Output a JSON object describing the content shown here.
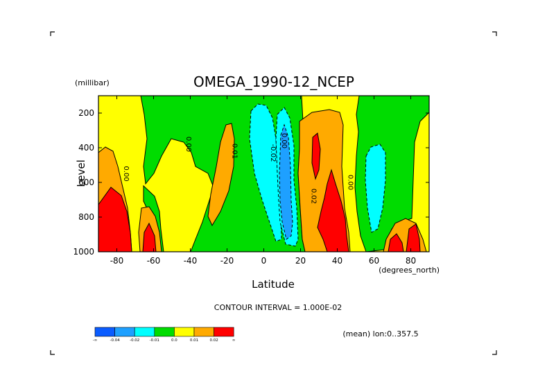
{
  "chart_data": {
    "type": "contour",
    "title": "OMEGA_1990-12_NCEP",
    "xlabel": "Latitude",
    "ylabel": "Level",
    "x_units": "(degrees_north)",
    "y_units": "(millibar)",
    "xlim": [
      -90,
      90
    ],
    "ylim": [
      1000,
      100
    ],
    "x_ticks": [
      -80,
      -60,
      -40,
      -20,
      0,
      20,
      40,
      60,
      80
    ],
    "x_tick_labels": [
      "-80",
      "-60",
      "-40",
      "-20",
      "0",
      "20",
      "40",
      "60",
      "80"
    ],
    "y_ticks": [
      200,
      400,
      600,
      800,
      1000
    ],
    "y_tick_labels": [
      "200",
      "400",
      "600",
      "800",
      "1000"
    ],
    "contour_interval_text": "CONTOUR INTERVAL = 1.000E-02",
    "footer_text": "(mean) lon:0..357.5",
    "contour_labels": [
      {
        "text": "0.00",
        "lat": -76,
        "level": 550
      },
      {
        "text": "0.00",
        "lat": -42,
        "level": 380
      },
      {
        "text": "0.01",
        "lat": -17,
        "level": 420
      },
      {
        "text": "-0.02",
        "lat": 4,
        "level": 430
      },
      {
        "text": "0.00",
        "lat": 10,
        "level": 360
      },
      {
        "text": "0.02",
        "lat": 26,
        "level": 680
      },
      {
        "text": "0.00",
        "lat": 46,
        "level": 600
      }
    ],
    "colorbar": {
      "colors": [
        "#0a5cff",
        "#1ea0ff",
        "#00ffff",
        "#00dc00",
        "#ffff00",
        "#ffaa00",
        "#ff0000"
      ],
      "labels": [
        "-∞",
        "-0.04",
        "-0.02",
        "-0.01",
        "0.0",
        "0.01",
        "0.02",
        "∞"
      ]
    }
  }
}
